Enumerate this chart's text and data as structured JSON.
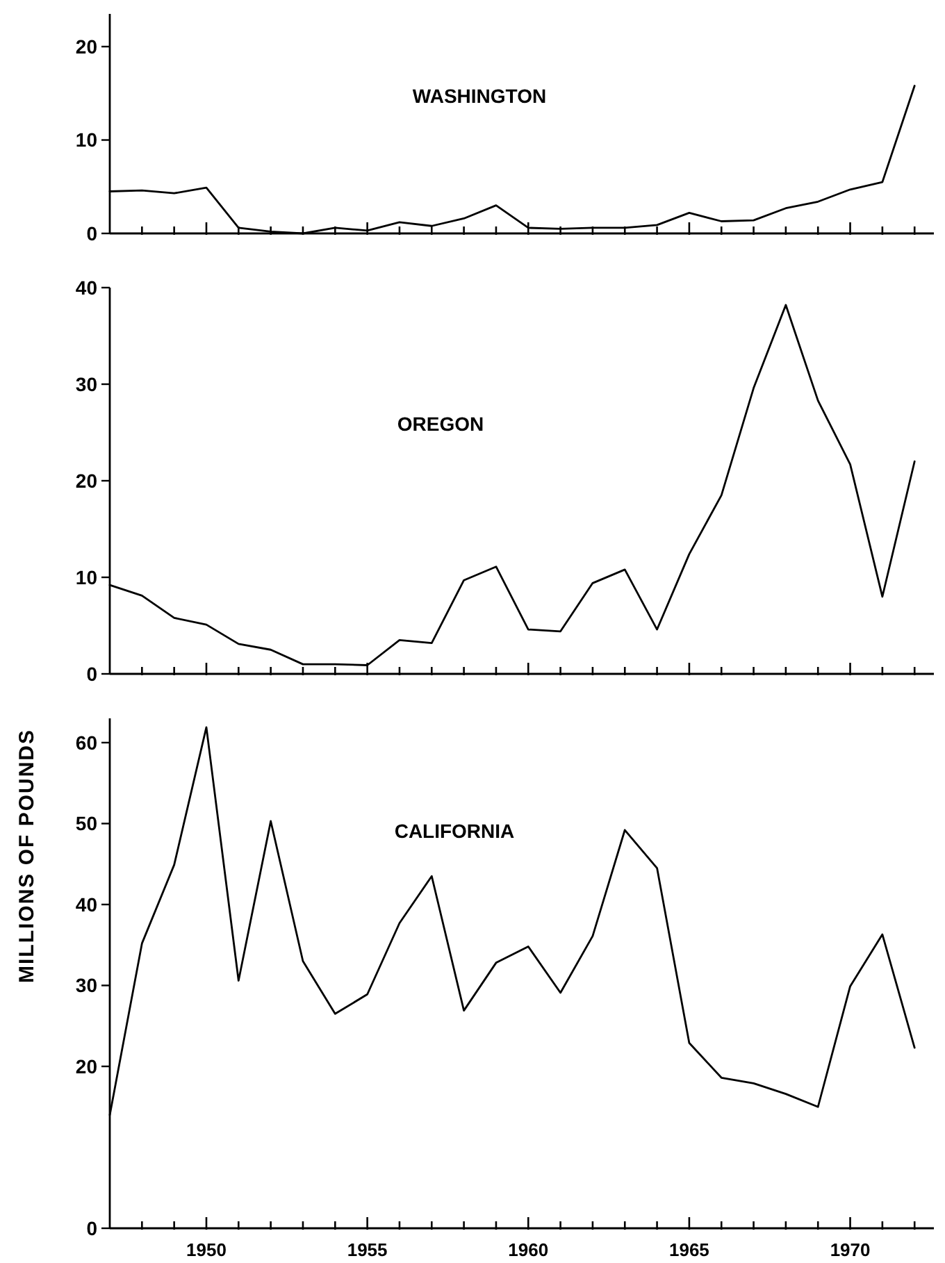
{
  "chart_data": [
    {
      "type": "line",
      "title": "WASHINGTON",
      "x": [
        1947,
        1948,
        1949,
        1950,
        1951,
        1952,
        1953,
        1954,
        1955,
        1956,
        1957,
        1958,
        1959,
        1960,
        1961,
        1962,
        1963,
        1964,
        1965,
        1966,
        1967,
        1968,
        1969,
        1970,
        1971,
        1972
      ],
      "series": [
        {
          "color": "#000000",
          "values": [
            4.5,
            4.6,
            4.3,
            4.9,
            0.6,
            0.2,
            0,
            0.6,
            0.3,
            1.2,
            0.8,
            1.6,
            3.0,
            0.6,
            0.5,
            0.6,
            0.6,
            0.9,
            2.2,
            1.3,
            1.4,
            2.7,
            3.4,
            4.7,
            5.5,
            15.8
          ]
        }
      ],
      "xlim": [
        1947,
        1972.6
      ],
      "xticks": [
        {
          "value": 1948,
          "label": null
        },
        {
          "value": 1949,
          "label": null
        },
        1950,
        {
          "value": 1951,
          "label": null
        },
        {
          "value": 1952,
          "label": null
        },
        {
          "value": 1953,
          "label": null
        },
        {
          "value": 1954,
          "label": null
        },
        1955,
        {
          "value": 1956,
          "label": null
        },
        {
          "value": 1957,
          "label": null
        },
        {
          "value": 1958,
          "label": null
        },
        {
          "value": 1959,
          "label": null
        },
        1960,
        {
          "value": 1961,
          "label": null
        },
        {
          "value": 1962,
          "label": null
        },
        {
          "value": 1963,
          "label": null
        },
        {
          "value": 1964,
          "label": null
        },
        1965,
        {
          "value": 1966,
          "label": null
        },
        {
          "value": 1967,
          "label": null
        },
        {
          "value": 1968,
          "label": null
        },
        {
          "value": 1969,
          "label": null
        },
        1970,
        {
          "value": 1971,
          "label": null
        },
        {
          "value": 1972,
          "label": null
        }
      ],
      "ylim": [
        0,
        23.5
      ],
      "yticks": [
        0,
        10,
        20
      ],
      "tick_labels": "y",
      "grid": false,
      "marker": "none",
      "line_style": "solid"
    },
    {
      "type": "line",
      "title": "OREGON",
      "x": [
        1947,
        1948,
        1949,
        1950,
        1951,
        1952,
        1953,
        1954,
        1955,
        1956,
        1957,
        1958,
        1959,
        1960,
        1961,
        1962,
        1963,
        1964,
        1965,
        1966,
        1967,
        1968,
        1969,
        1970,
        1971,
        1972
      ],
      "series": [
        {
          "color": "#000000",
          "values": [
            9.2,
            8.1,
            5.8,
            5.1,
            3.1,
            2.5,
            1.0,
            1.0,
            0.9,
            3.5,
            3.2,
            9.7,
            11.1,
            4.6,
            4.4,
            9.4,
            10.8,
            4.6,
            12.4,
            18.5,
            29.6,
            38.2,
            28.3,
            21.7,
            8.0,
            22.0
          ]
        }
      ],
      "xlim": [
        1947,
        1972.6
      ],
      "xticks": [
        {
          "value": 1948,
          "label": null
        },
        {
          "value": 1949,
          "label": null
        },
        1950,
        {
          "value": 1951,
          "label": null
        },
        {
          "value": 1952,
          "label": null
        },
        {
          "value": 1953,
          "label": null
        },
        {
          "value": 1954,
          "label": null
        },
        1955,
        {
          "value": 1956,
          "label": null
        },
        {
          "value": 1957,
          "label": null
        },
        {
          "value": 1958,
          "label": null
        },
        {
          "value": 1959,
          "label": null
        },
        1960,
        {
          "value": 1961,
          "label": null
        },
        {
          "value": 1962,
          "label": null
        },
        {
          "value": 1963,
          "label": null
        },
        {
          "value": 1964,
          "label": null
        },
        1965,
        {
          "value": 1966,
          "label": null
        },
        {
          "value": 1967,
          "label": null
        },
        {
          "value": 1968,
          "label": null
        },
        {
          "value": 1969,
          "label": null
        },
        1970,
        {
          "value": 1971,
          "label": null
        },
        {
          "value": 1972,
          "label": null
        }
      ],
      "ylim": [
        0,
        40
      ],
      "yticks": [
        0,
        10,
        20,
        30,
        40
      ],
      "tick_labels": "y",
      "grid": false,
      "marker": "none",
      "line_style": "solid"
    },
    {
      "type": "line",
      "title": "CALIFORNIA",
      "ylabel": "MILLIONS OF POUNDS",
      "x": [
        1947,
        1948,
        1949,
        1950,
        1951,
        1952,
        1953,
        1954,
        1955,
        1956,
        1957,
        1958,
        1959,
        1960,
        1961,
        1962,
        1963,
        1964,
        1965,
        1966,
        1967,
        1968,
        1969,
        1970,
        1971,
        1972
      ],
      "series": [
        {
          "color": "#000000",
          "values": [
            14,
            35.2,
            44.9,
            61.9,
            30.6,
            50.3,
            33,
            26.5,
            28.9,
            37.7,
            43.5,
            26.9,
            32.8,
            34.8,
            29.1,
            36.1,
            49.2,
            44.5,
            22.9,
            18.6,
            17.9,
            16.6,
            15,
            29.9,
            36.3,
            22.3
          ]
        }
      ],
      "xlim": [
        1947,
        1972.6
      ],
      "xticks": [
        {
          "value": 1948,
          "label": null
        },
        {
          "value": 1949,
          "label": null
        },
        1950,
        {
          "value": 1951,
          "label": null
        },
        {
          "value": 1952,
          "label": null
        },
        {
          "value": 1953,
          "label": null
        },
        {
          "value": 1954,
          "label": null
        },
        1955,
        {
          "value": 1956,
          "label": null
        },
        {
          "value": 1957,
          "label": null
        },
        {
          "value": 1958,
          "label": null
        },
        {
          "value": 1959,
          "label": null
        },
        1960,
        {
          "value": 1961,
          "label": null
        },
        {
          "value": 1962,
          "label": null
        },
        {
          "value": 1963,
          "label": null
        },
        {
          "value": 1964,
          "label": null
        },
        1965,
        {
          "value": 1966,
          "label": null
        },
        {
          "value": 1967,
          "label": null
        },
        {
          "value": 1968,
          "label": null
        },
        {
          "value": 1969,
          "label": null
        },
        1970,
        {
          "value": 1971,
          "label": null
        },
        {
          "value": 1972,
          "label": null
        }
      ],
      "ylim": [
        0,
        63
      ],
      "yticks": [
        0,
        20,
        30,
        40,
        50,
        60
      ],
      "grid": false,
      "marker": "none",
      "line_style": "solid"
    }
  ]
}
